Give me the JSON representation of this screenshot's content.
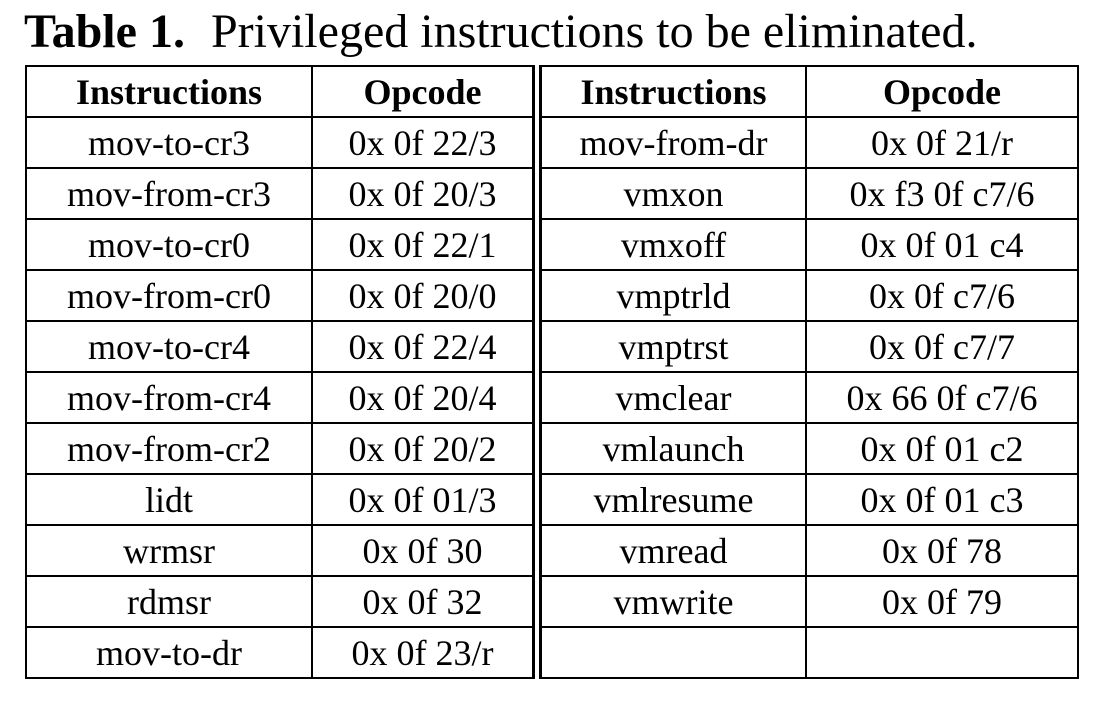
{
  "caption": {
    "label": "Table 1.",
    "text": "Privileged instructions to be eliminated."
  },
  "headers": [
    "Instructions",
    "Opcode",
    "Instructions",
    "Opcode"
  ],
  "rows": [
    [
      "mov-to-cr3",
      "0x 0f 22/3",
      "mov-from-dr",
      "0x 0f 21/r"
    ],
    [
      "mov-from-cr3",
      "0x 0f 20/3",
      "vmxon",
      "0x f3 0f c7/6"
    ],
    [
      "mov-to-cr0",
      "0x 0f 22/1",
      "vmxoff",
      "0x 0f 01 c4"
    ],
    [
      "mov-from-cr0",
      "0x 0f 20/0",
      "vmptrld",
      "0x 0f c7/6"
    ],
    [
      "mov-to-cr4",
      "0x 0f 22/4",
      "vmptrst",
      "0x 0f c7/7"
    ],
    [
      "mov-from-cr4",
      "0x 0f 20/4",
      "vmclear",
      "0x 66 0f c7/6"
    ],
    [
      "mov-from-cr2",
      "0x 0f 20/2",
      "vmlaunch",
      "0x 0f 01 c2"
    ],
    [
      "lidt",
      "0x 0f 01/3",
      "vmlresume",
      "0x 0f 01 c3"
    ],
    [
      "wrmsr",
      "0x 0f 30",
      "vmread",
      "0x 0f 78"
    ],
    [
      "rdmsr",
      "0x 0f 32",
      "vmwrite",
      "0x 0f 79"
    ],
    [
      "mov-to-dr",
      "0x 0f 23/r",
      "",
      ""
    ]
  ]
}
